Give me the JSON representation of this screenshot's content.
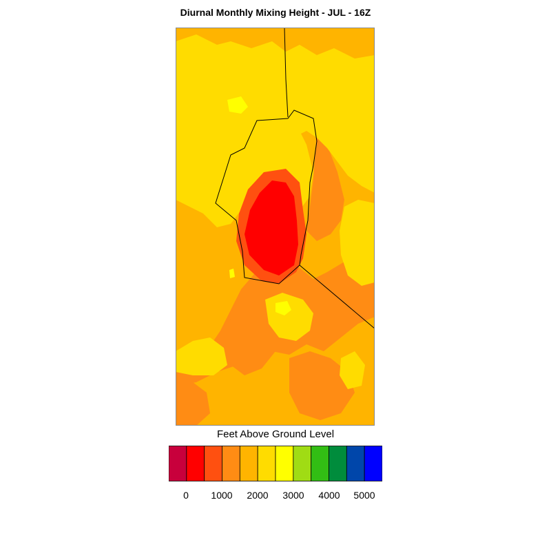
{
  "title": "Diurnal Monthly Mixing Height - JUL - 16Z",
  "legend": {
    "title": "Feet Above Ground Level",
    "colors": [
      "#c8003c",
      "#ff0000",
      "#ff5010",
      "#ff8c14",
      "#ffb400",
      "#ffdc00",
      "#ffff00",
      "#a0dc14",
      "#32be14",
      "#008c3c",
      "#0046aa",
      "#0000ff"
    ],
    "tick_labels": [
      "0",
      "1000",
      "2000",
      "3000",
      "4000",
      "5000"
    ]
  },
  "map_colors": {
    "base": "#ff8c14",
    "level_2000": "#ffb400",
    "level_2500": "#ffdc00",
    "level_3000": "#ffff00",
    "level_1000": "#ff5010",
    "level_500": "#ff0000",
    "boundary": "#000000",
    "frame": "#888888"
  }
}
